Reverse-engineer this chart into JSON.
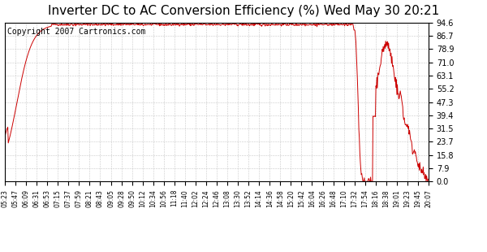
{
  "title": "Inverter DC to AC Conversion Efficiency (%) Wed May 30 20:21",
  "copyright": "Copyright 2007 Cartronics.com",
  "line_color": "#cc0000",
  "background_color": "#ffffff",
  "plot_background": "#ffffff",
  "grid_color": "#bbbbbb",
  "yticks": [
    0.0,
    7.9,
    15.8,
    23.7,
    31.5,
    39.4,
    47.3,
    55.2,
    63.1,
    71.0,
    78.9,
    86.7,
    94.6
  ],
  "xtick_labels": [
    "05:23",
    "05:47",
    "06:09",
    "06:31",
    "06:53",
    "07:15",
    "07:37",
    "07:59",
    "08:21",
    "08:43",
    "09:05",
    "09:28",
    "09:50",
    "10:12",
    "10:34",
    "10:56",
    "11:18",
    "11:40",
    "12:02",
    "12:24",
    "12:46",
    "13:08",
    "13:30",
    "13:52",
    "14:14",
    "14:36",
    "14:58",
    "15:20",
    "15:42",
    "16:04",
    "16:26",
    "16:48",
    "17:10",
    "17:32",
    "17:54",
    "18:16",
    "18:38",
    "19:01",
    "19:23",
    "19:45",
    "20:07"
  ],
  "ylim": [
    0.0,
    94.6
  ],
  "title_fontsize": 11,
  "copyright_fontsize": 7
}
